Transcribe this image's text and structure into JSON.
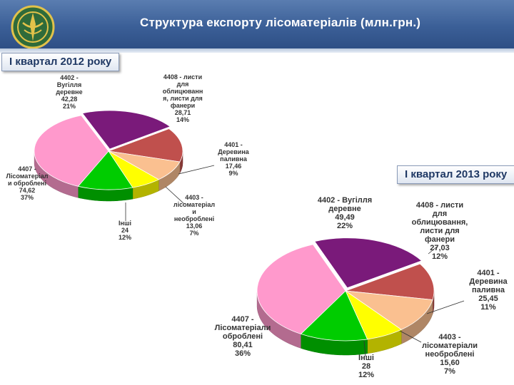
{
  "header": {
    "title": "Структура експорту лісоматеріалів  (млн.грн.)",
    "logo_icon": "customs-emblem-icon"
  },
  "chart_data": [
    {
      "type": "pie",
      "title": "І квартал 2012 року",
      "slices": [
        {
          "label": "4402 - Вугілля деревне",
          "value": 42.28,
          "percent": "21%",
          "color": "#7a1a7a"
        },
        {
          "label": "4408 - листи для облицювання, листи для фанери",
          "value": 28.71,
          "percent": "14%",
          "color": "#c0504d"
        },
        {
          "label": "4401 - Деревина паливна",
          "value": 17.46,
          "percent": "9%",
          "color": "#fac090"
        },
        {
          "label": "4403 - лісоматеріали необроблені",
          "value": 13.06,
          "percent": "7%",
          "color": "#ffff00"
        },
        {
          "label": "Інші",
          "value": 24,
          "percent": "12%",
          "color": "#00cc00"
        },
        {
          "label": "4407 - Лісоматеріали оброблені",
          "value": 74.62,
          "percent": "37%",
          "color": "#ff99cc"
        }
      ]
    },
    {
      "type": "pie",
      "title": "І квартал 2013 року",
      "slices": [
        {
          "label": "4402 - Вугілля деревне",
          "value": 49.49,
          "percent": "22%",
          "color": "#7a1a7a"
        },
        {
          "label": "4408 - листи для облицювання, листи для фанери",
          "value": 27.03,
          "percent": "12%",
          "color": "#c0504d"
        },
        {
          "label": "4401 - Деревина паливна",
          "value": 25.45,
          "percent": "11%",
          "color": "#fac090"
        },
        {
          "label": "4403 - лісоматеріали необроблені",
          "value": 15.6,
          "percent": "7%",
          "color": "#ffff00"
        },
        {
          "label": "Інші",
          "value": 28,
          "percent": "12%",
          "color": "#00cc00"
        },
        {
          "label": "4407 - Лісоматеріали оброблені",
          "value": 80.41,
          "percent": "36%",
          "color": "#ff99cc"
        }
      ]
    }
  ],
  "labels2012": {
    "l0": "4402 -\nВугілля\nдеревне\n42,28\n21%",
    "l1": "4408 - листи\nдля\nоблицюванн\nя, листи для\nфанери\n28,71\n14%",
    "l2": "4401 -\nДеревина\nпаливна\n17,46\n9%",
    "l3": "4403 -\nлісоматеріал\nи\nнеоброблені\n13,06\n7%",
    "l4": "Інші\n24\n12%",
    "l5": "4407 -\nЛісоматеріал\nи оброблені\n74,62\n37%"
  },
  "labels2013": {
    "l0": "4402 - Вугілля\nдеревне\n49,49\n22%",
    "l1": "4408 - листи\nдля\nоблицювання,\nлисти для\nфанери\n27,03\n12%",
    "l2": "4401 -\nДеревина\nпаливна\n25,45\n11%",
    "l3": "4403 -\nлісоматеріали\nнеоброблені\n15,60\n7%",
    "l4": "Інші\n28\n12%",
    "l5": "4407 -\nЛісоматеріали\nоброблені\n80,41\n36%"
  }
}
